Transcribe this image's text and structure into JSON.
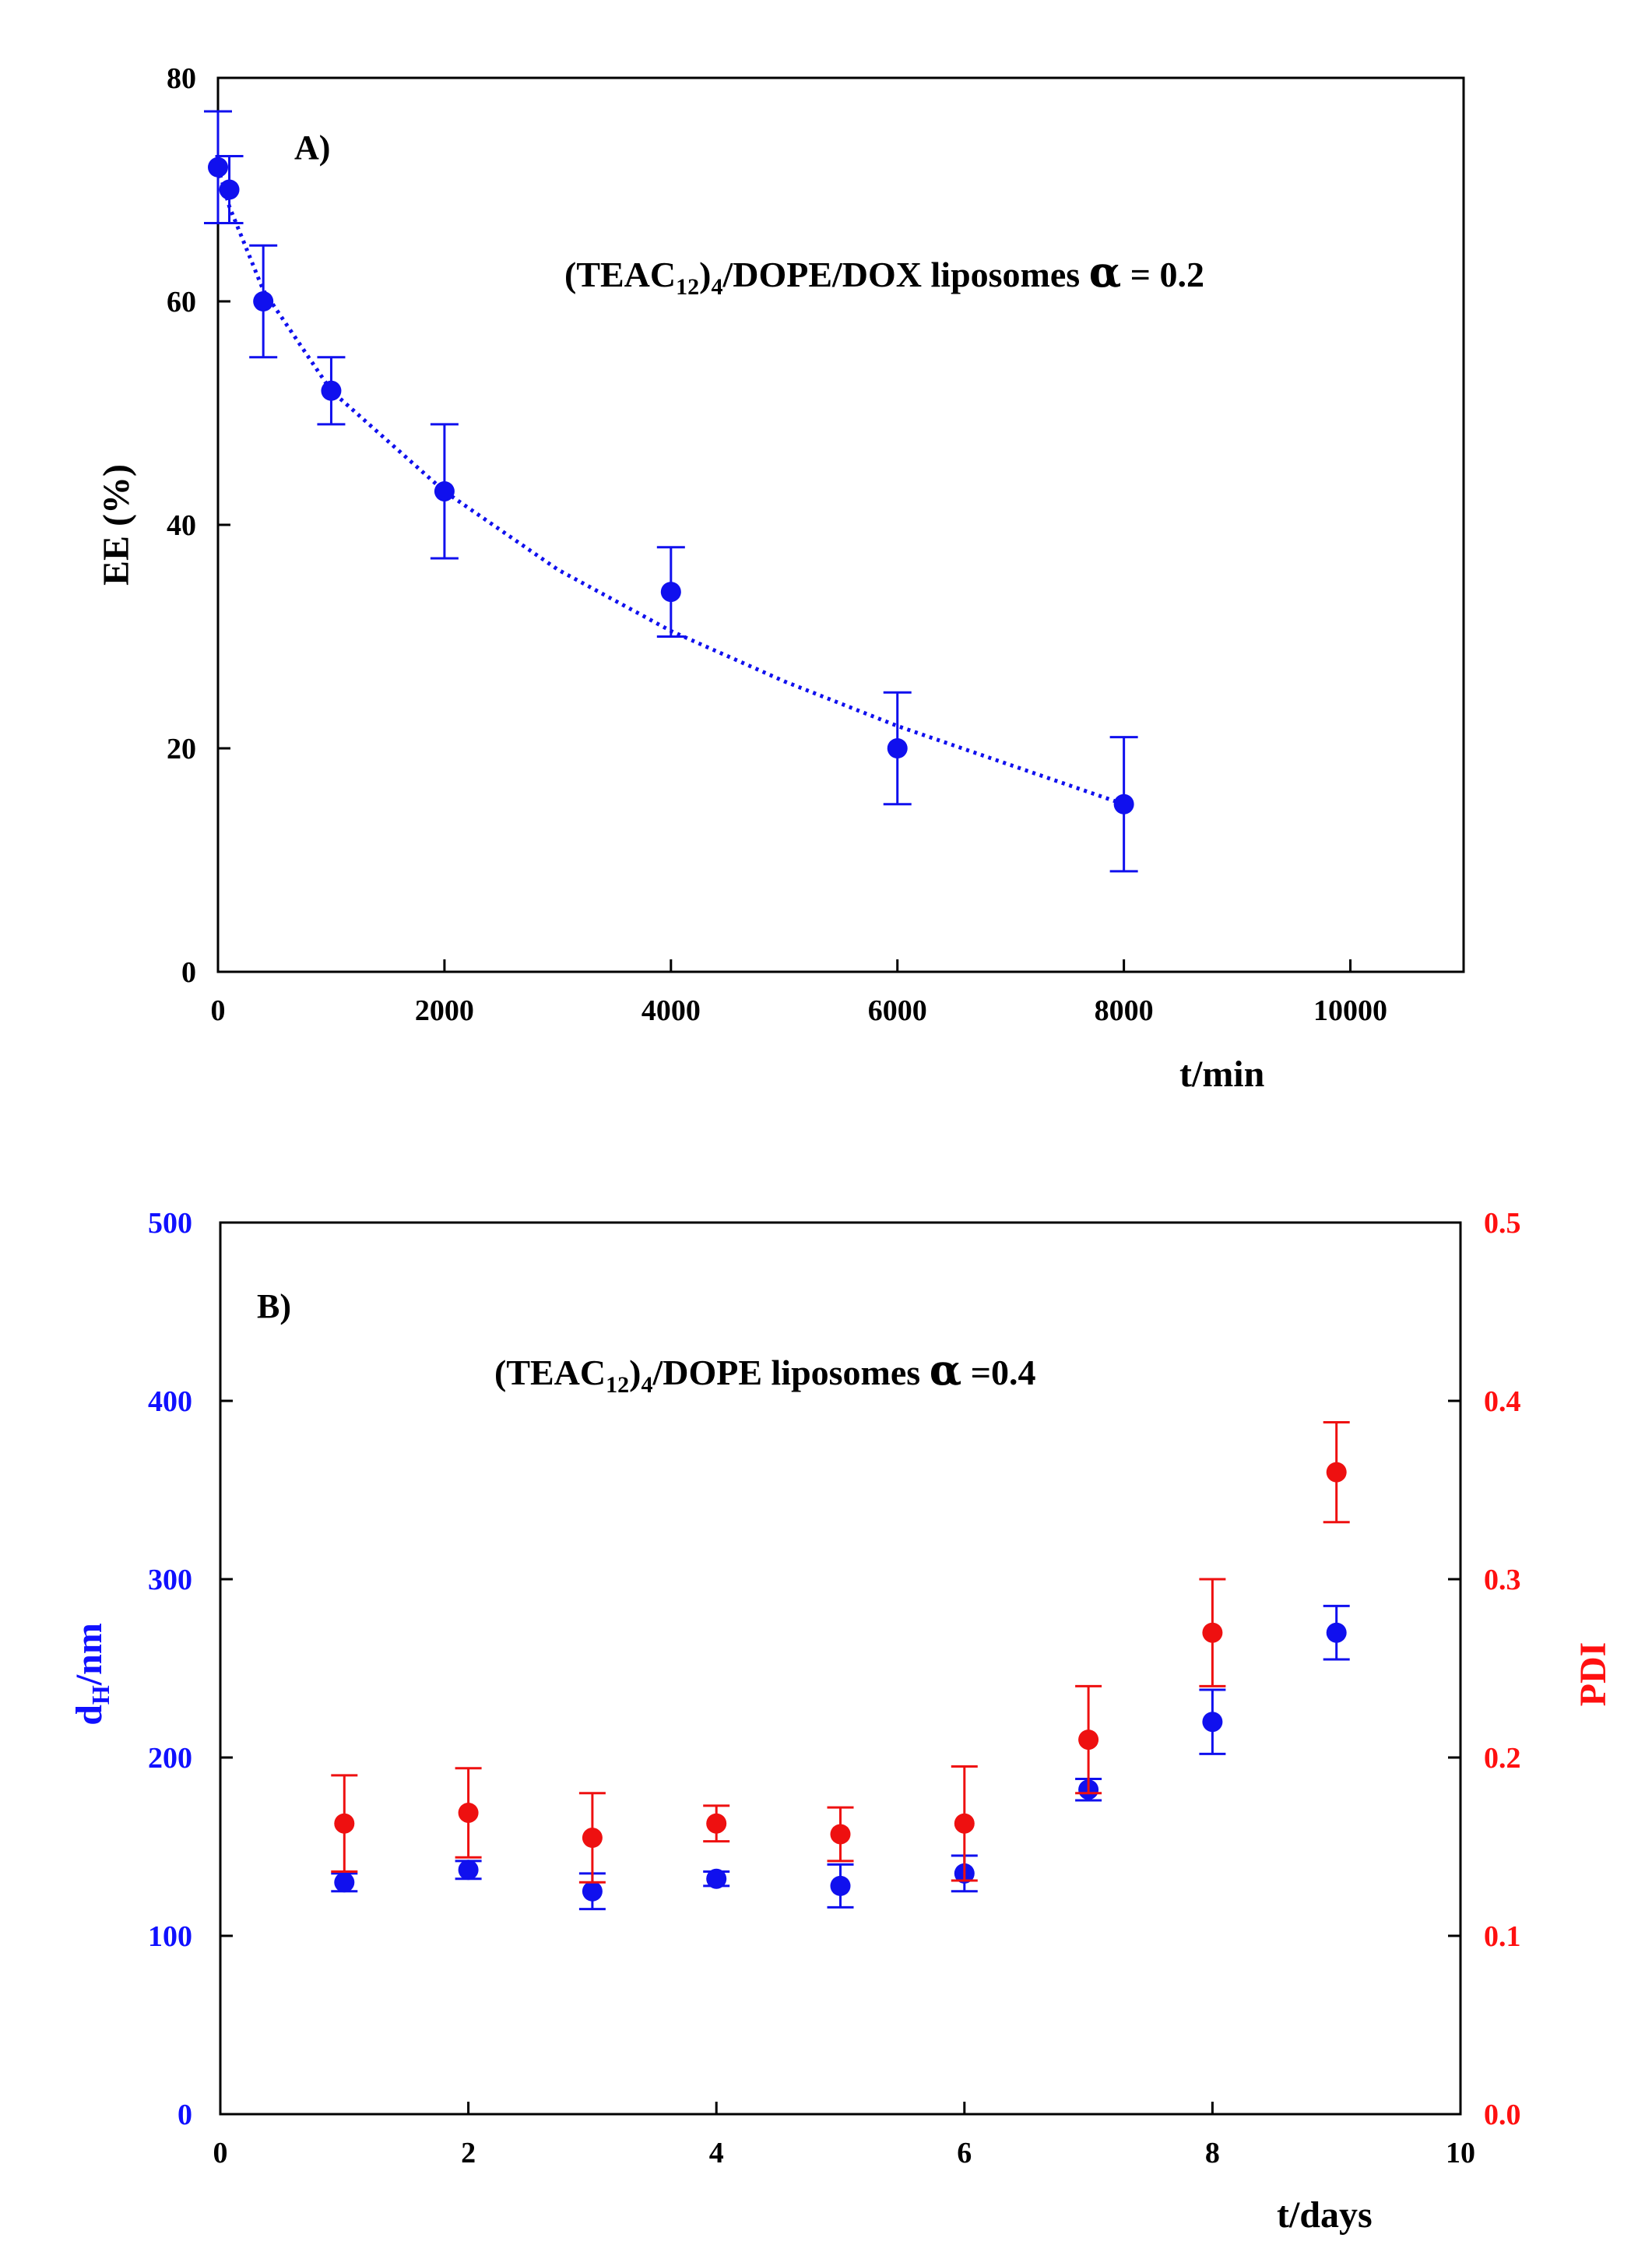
{
  "chart_data": [
    {
      "id": "A",
      "type": "scatter",
      "panel_label": "A)",
      "annotation": {
        "prefix": "(TEAC",
        "sub1": "12",
        "mid": ")",
        "sub2": "4",
        "suffix": "/DOPE/DOX liposomes ",
        "greek": "α",
        "eq": " = 0.2"
      },
      "xlabel": "t/min",
      "ylabel": "EE (%)",
      "xlim": [
        0,
        11000
      ],
      "ylim": [
        0,
        80
      ],
      "xticks": [
        "0",
        "2000",
        "4000",
        "6000",
        "8000",
        "10000"
      ],
      "xtick_values": [
        0,
        2000,
        4000,
        6000,
        8000,
        10000
      ],
      "yticks": [
        "0",
        "20",
        "40",
        "60",
        "80"
      ],
      "ytick_values": [
        0,
        20,
        40,
        60,
        80
      ],
      "color": "#1010ee",
      "series": [
        {
          "name": "EE",
          "x": [
            0,
            100,
            400,
            1000,
            2000,
            4000,
            6000,
            8000
          ],
          "y": [
            72,
            70,
            60,
            52,
            43,
            34,
            20,
            15
          ],
          "err": [
            5,
            3,
            5,
            3,
            6,
            4,
            5,
            6
          ]
        }
      ],
      "fit": {
        "style": "dotted",
        "x": [
          0,
          100,
          400,
          1000,
          2000,
          3000,
          4000,
          5000,
          6000,
          7000,
          8000
        ],
        "y": [
          72,
          68.5,
          61,
          52,
          43,
          36,
          30.5,
          26,
          22,
          18.5,
          15
        ]
      }
    },
    {
      "id": "B",
      "type": "scatter",
      "panel_label": "B)",
      "annotation": {
        "prefix": "(TEAC",
        "sub1": "12",
        "mid": ")",
        "sub2": "4",
        "suffix": "/DOPE liposomes ",
        "greek": "α",
        "eq": " =0.4"
      },
      "xlabel": "t/days",
      "ylabel_left": {
        "main": "d",
        "sub": "H",
        "rest": "/nm"
      },
      "ylabel_right": "PDI",
      "xlim": [
        0,
        10
      ],
      "ylim_left": [
        0,
        500
      ],
      "ylim_right": [
        0.0,
        0.5
      ],
      "xticks": [
        "0",
        "2",
        "4",
        "6",
        "8",
        "10"
      ],
      "xtick_values": [
        0,
        2,
        4,
        6,
        8,
        10
      ],
      "yticks_left": [
        "0",
        "100",
        "200",
        "300",
        "400",
        "500"
      ],
      "ytick_values_left": [
        0,
        100,
        200,
        300,
        400,
        500
      ],
      "yticks_right": [
        "0.0",
        "0.1",
        "0.2",
        "0.3",
        "0.4",
        "0.5"
      ],
      "ytick_values_right": [
        0,
        0.1,
        0.2,
        0.3,
        0.4,
        0.5
      ],
      "left_color": "#1010ff",
      "right_color": "#ff1010",
      "series": [
        {
          "name": "dH",
          "axis": "left",
          "color": "#1010ee",
          "x": [
            1,
            2,
            3,
            4,
            5,
            6,
            7,
            8,
            9
          ],
          "y": [
            130,
            137,
            125,
            132,
            128,
            135,
            182,
            220,
            270
          ],
          "err": [
            5,
            5,
            10,
            4,
            12,
            10,
            6,
            18,
            15
          ]
        },
        {
          "name": "PDI",
          "axis": "right",
          "color": "#ee1010",
          "x": [
            1,
            2,
            3,
            4,
            5,
            6,
            7,
            8,
            9
          ],
          "y": [
            0.163,
            0.169,
            0.155,
            0.163,
            0.157,
            0.163,
            0.21,
            0.27,
            0.36
          ],
          "err": [
            0.027,
            0.025,
            0.025,
            0.01,
            0.015,
            0.032,
            0.03,
            0.03,
            0.028
          ]
        }
      ]
    }
  ]
}
